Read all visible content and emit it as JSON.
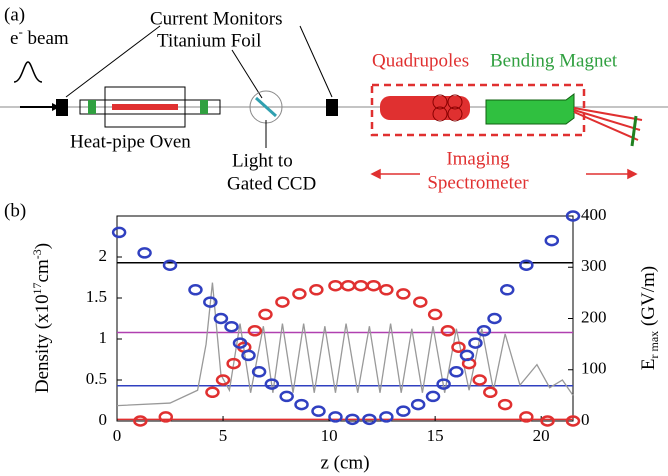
{
  "diagram": {
    "panel_label": "(a)",
    "beam_label": {
      "base": "e",
      "sup": "-",
      "rest": " beam"
    },
    "current_monitors": "Current Monitors",
    "titanium_foil": "Titanium Foil",
    "oven": "Heat-pipe Oven",
    "light_to": "Light to",
    "ccd": "Gated CCD",
    "quadrupoles": "Quadrupoles",
    "bending_magnet": "Bending Magnet",
    "imaging": "Imaging",
    "spectrometer": "Spectrometer"
  },
  "chart_data": {
    "type": "scatter",
    "panel_label": "(b)",
    "x_label": "z (cm)",
    "y_label": {
      "a": "Density (x10",
      "sup1": "17",
      "b": "cm",
      "sup2": "-3",
      "c": ")"
    },
    "y2_label": {
      "base": "E",
      "sub": "r max",
      "rest": " (GV/m)"
    },
    "xlim": [
      0,
      21.5
    ],
    "xticks": [
      0,
      5,
      10,
      15,
      20
    ],
    "ylim": [
      0,
      2.5
    ],
    "yticks": [
      0,
      0.5,
      1,
      1.5,
      2
    ],
    "y2lim": [
      0,
      400
    ],
    "y2ticks": [
      0,
      100,
      200,
      300,
      400
    ],
    "hlines": [
      {
        "value": 1.93,
        "color": "#000000"
      },
      {
        "value": 1.08,
        "color": "#b040b0"
      },
      {
        "value": 0.43,
        "color": "#3040c0"
      },
      {
        "value": 0.02,
        "color": "#e03030"
      }
    ],
    "series": [
      {
        "color": "#999999",
        "mode": "line",
        "axis": "y2",
        "x": [
          0,
          2.5,
          3.8,
          4.2,
          4.5,
          4.9,
          5.3,
          5.8,
          6.3,
          6.9,
          7.35,
          7.8,
          8.3,
          8.8,
          9.3,
          9.8,
          10.3,
          10.8,
          11.35,
          11.9,
          12.4,
          12.9,
          13.4,
          13.9,
          14.4,
          14.9,
          15.45,
          16.0,
          16.6,
          17.2,
          17.75,
          18.3,
          19.0,
          19.8,
          20.4,
          21.0,
          21.5
        ],
        "values": [
          30,
          35,
          60,
          150,
          270,
          90,
          60,
          190,
          55,
          185,
          55,
          190,
          55,
          190,
          55,
          185,
          55,
          190,
          55,
          185,
          55,
          190,
          55,
          180,
          55,
          185,
          55,
          180,
          60,
          180,
          60,
          170,
          70,
          110,
          65,
          80,
          50
        ]
      },
      {
        "color": "#e03030",
        "mode": "markers",
        "x": [
          1.1,
          2.3,
          4.5,
          5.0,
          5.5,
          6.0,
          6.5,
          7.0,
          7.8,
          8.6,
          9.4,
          10.3,
          10.9,
          11.5,
          12.1,
          12.7,
          13.5,
          14.3,
          15.0,
          15.6,
          16.1,
          16.6,
          17.1,
          17.6,
          18.3,
          19.3,
          20.3,
          21.5
        ],
        "values": [
          0.0,
          0.05,
          0.35,
          0.5,
          0.7,
          0.9,
          1.1,
          1.3,
          1.45,
          1.55,
          1.6,
          1.65,
          1.65,
          1.65,
          1.65,
          1.6,
          1.55,
          1.45,
          1.3,
          1.1,
          0.9,
          0.7,
          0.5,
          0.35,
          0.2,
          0.05,
          0.0,
          0.0
        ]
      },
      {
        "color": "#3040c0",
        "mode": "markers",
        "x": [
          0.1,
          1.3,
          2.5,
          3.7,
          4.4,
          4.9,
          5.4,
          5.8,
          6.2,
          6.7,
          7.3,
          8.0,
          8.7,
          9.5,
          10.3,
          11.1,
          11.9,
          12.7,
          13.5,
          14.2,
          14.9,
          15.4,
          16.0,
          16.5,
          16.9,
          17.3,
          17.8,
          18.4,
          19.3,
          20.5,
          21.5
        ],
        "values": [
          2.3,
          2.05,
          1.9,
          1.6,
          1.45,
          1.25,
          1.15,
          0.95,
          0.8,
          0.6,
          0.45,
          0.3,
          0.2,
          0.12,
          0.05,
          0.02,
          0.02,
          0.05,
          0.12,
          0.2,
          0.3,
          0.45,
          0.6,
          0.8,
          0.95,
          1.1,
          1.25,
          1.6,
          1.9,
          2.2,
          2.5
        ]
      }
    ]
  }
}
